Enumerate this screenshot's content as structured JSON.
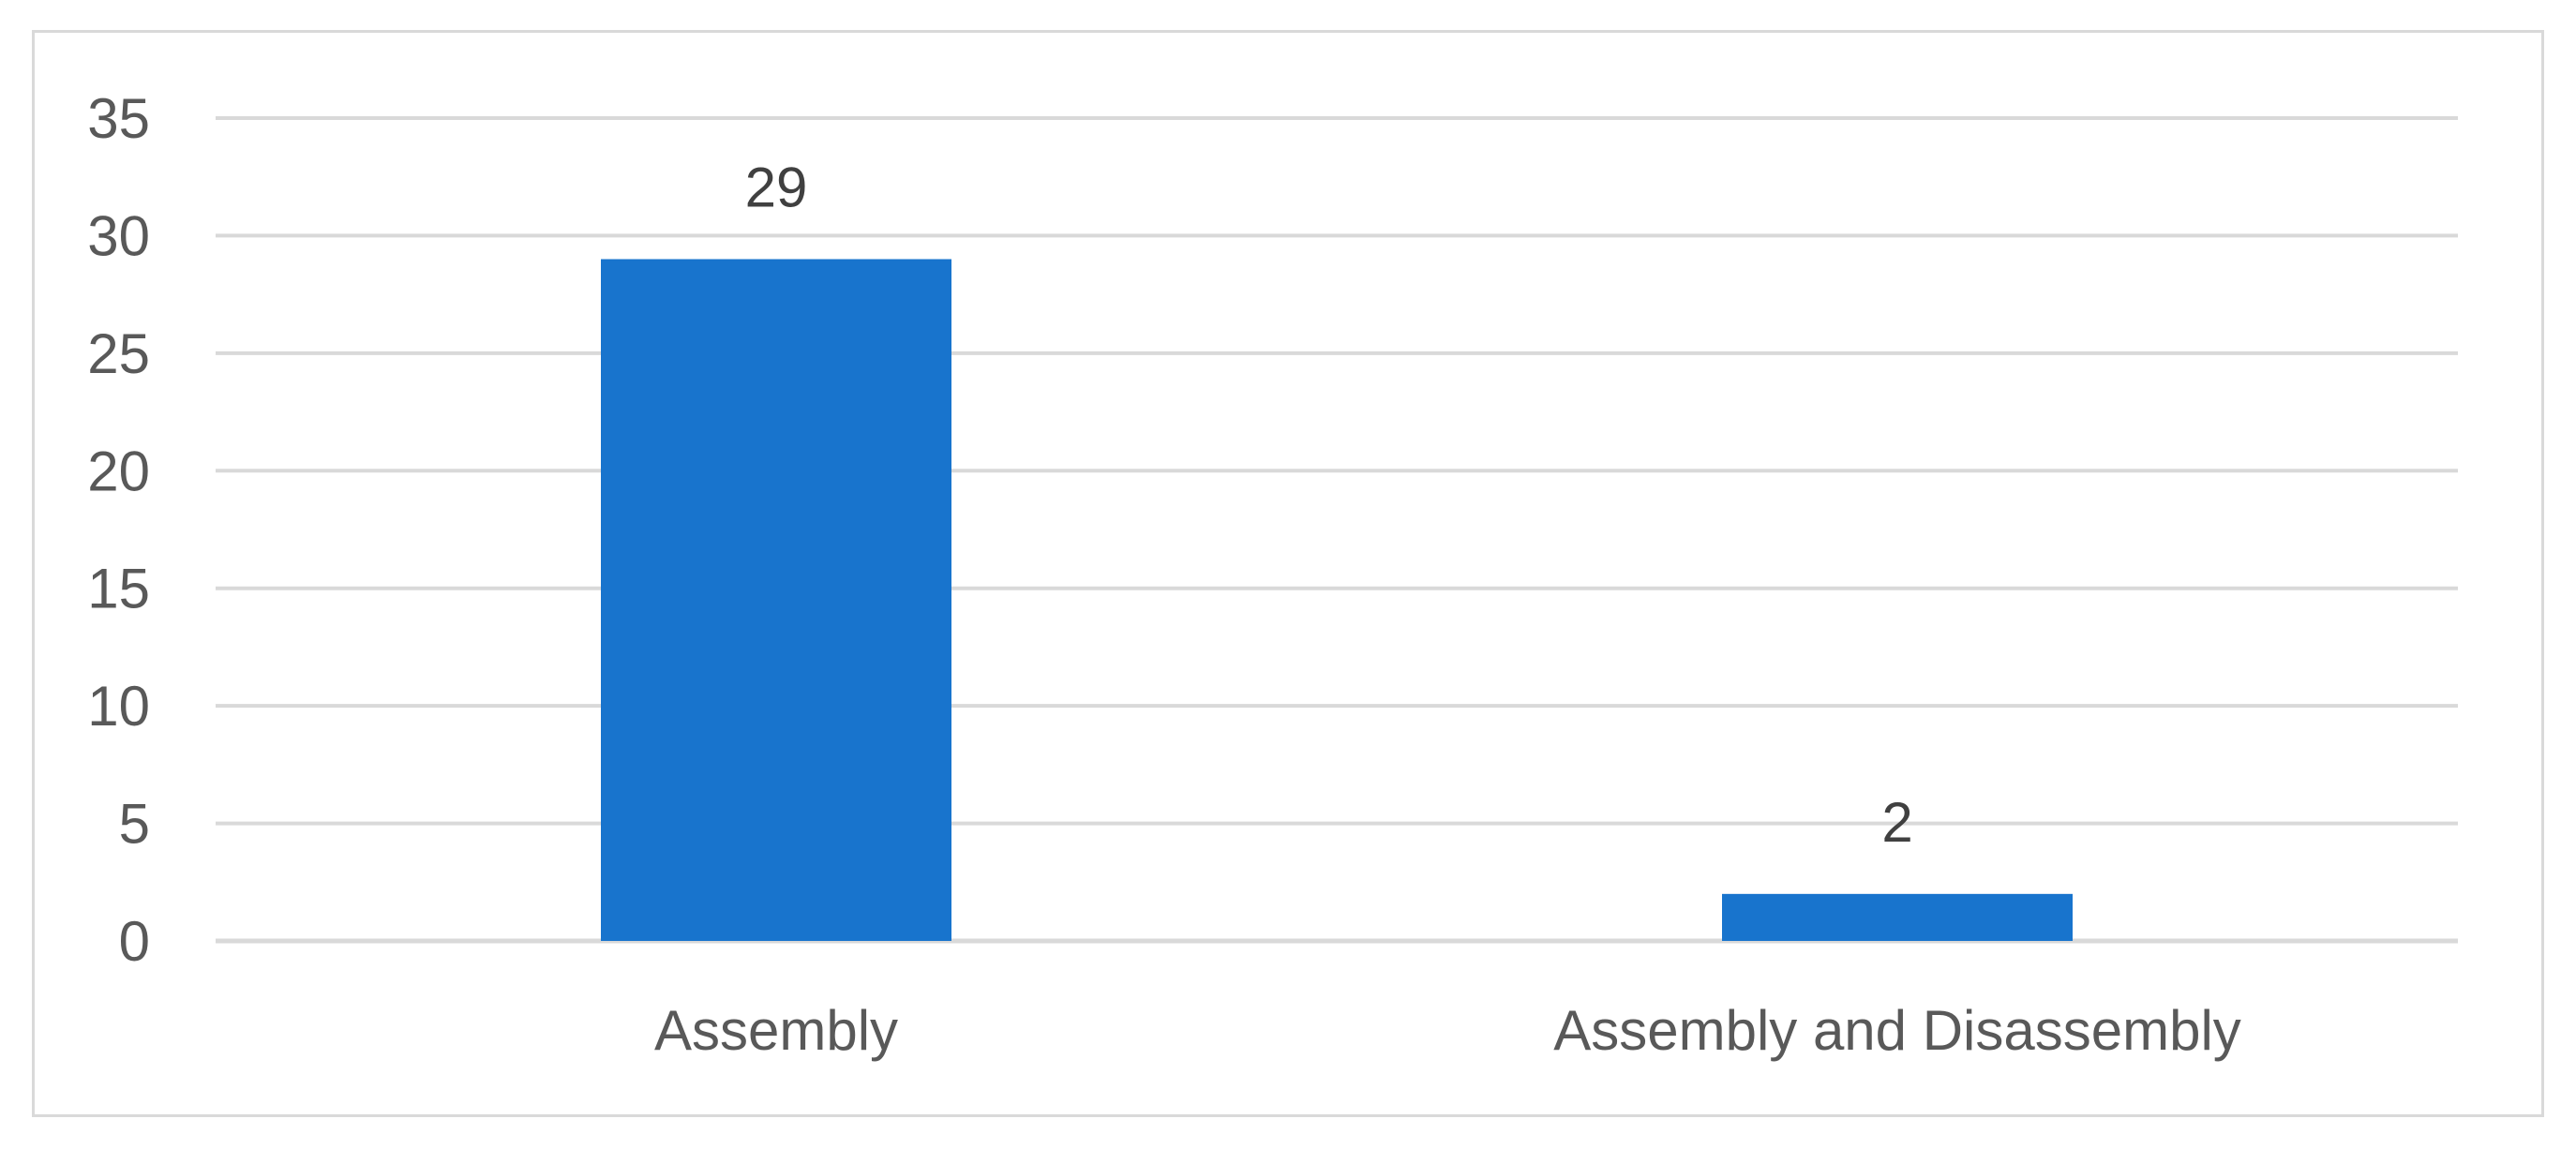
{
  "chart_data": {
    "type": "bar",
    "categories": [
      "Assembly",
      "Assembly and Disassembly"
    ],
    "values": [
      29,
      2
    ],
    "data_labels": [
      "29",
      "2"
    ],
    "ylim": [
      0,
      35
    ],
    "yticks": [
      "0",
      "5",
      "10",
      "15",
      "20",
      "25",
      "30",
      "35"
    ],
    "title": "",
    "xlabel": "",
    "ylabel": "",
    "grid": true,
    "legend": "none",
    "colors": {
      "bar": "#1874cd",
      "grid": "#d9d9d9",
      "axis": "#d9d9d9",
      "tick_text": "#595959",
      "data_label_text": "#404040",
      "frame": "#d9d9d9"
    }
  }
}
